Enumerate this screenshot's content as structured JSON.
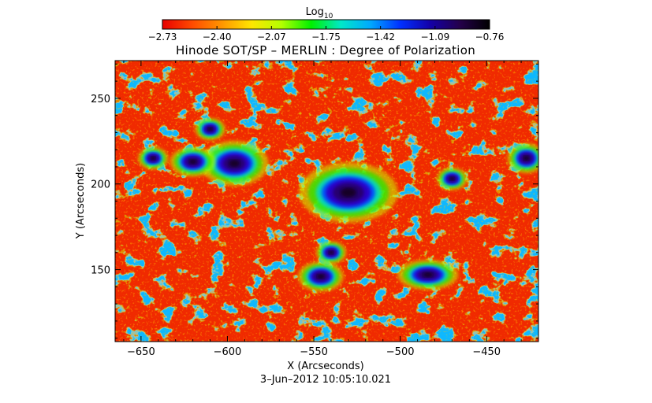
{
  "chart_data": {
    "type": "heatmap",
    "title": "Hinode SOT/SP – MERLIN : Degree of Polarization",
    "xlabel": "X (Arcseconds)",
    "ylabel": "Y (Arcseconds)",
    "date_label": "3–Jun–2012 10:05:10.021",
    "xlim": [
      -665,
      -420
    ],
    "ylim": [
      108,
      272
    ],
    "x_ticks": [
      -650,
      -600,
      -550,
      -500,
      -450
    ],
    "x_tick_labels": [
      "−650",
      "−600",
      "−550",
      "−500",
      "−450"
    ],
    "y_ticks": [
      150,
      200,
      250
    ],
    "y_tick_labels": [
      "150",
      "200",
      "250"
    ],
    "colorbar": {
      "title_base": "Log",
      "title_sub": "10",
      "range": [
        -2.73,
        -0.76
      ],
      "tick_labels": [
        "−2.73",
        "−2.40",
        "−2.07",
        "−1.75",
        "−1.42",
        "−1.09",
        "−0.76"
      ],
      "colormap": [
        "#e80000",
        "#ff4a00",
        "#ff9600",
        "#ffe600",
        "#b4ff00",
        "#00f000",
        "#00e8c8",
        "#00a8ff",
        "#0030ff",
        "#1400a8",
        "#24004a",
        "#000000"
      ]
    },
    "features": [
      {
        "kind": "strong-polarization",
        "x": -530,
        "y": 195,
        "rx": 13,
        "ry": 8
      },
      {
        "kind": "strong-polarization",
        "x": -596,
        "y": 212,
        "rx": 9,
        "ry": 6
      },
      {
        "kind": "strong-polarization",
        "x": -620,
        "y": 213,
        "rx": 6,
        "ry": 4
      },
      {
        "kind": "strong-polarization",
        "x": -643,
        "y": 215,
        "rx": 4,
        "ry": 3
      },
      {
        "kind": "strong-polarization",
        "x": -540,
        "y": 160,
        "rx": 4,
        "ry": 3
      },
      {
        "kind": "strong-polarization",
        "x": -546,
        "y": 146,
        "rx": 6,
        "ry": 4
      },
      {
        "kind": "strong-polarization",
        "x": -484,
        "y": 147,
        "rx": 8,
        "ry": 4
      },
      {
        "kind": "strong-polarization",
        "x": -470,
        "y": 203,
        "rx": 4,
        "ry": 3
      },
      {
        "kind": "strong-polarization",
        "x": -427,
        "y": 215,
        "rx": 5,
        "ry": 4
      },
      {
        "kind": "strong-polarization",
        "x": -610,
        "y": 232,
        "rx": 4,
        "ry": 3
      }
    ]
  }
}
